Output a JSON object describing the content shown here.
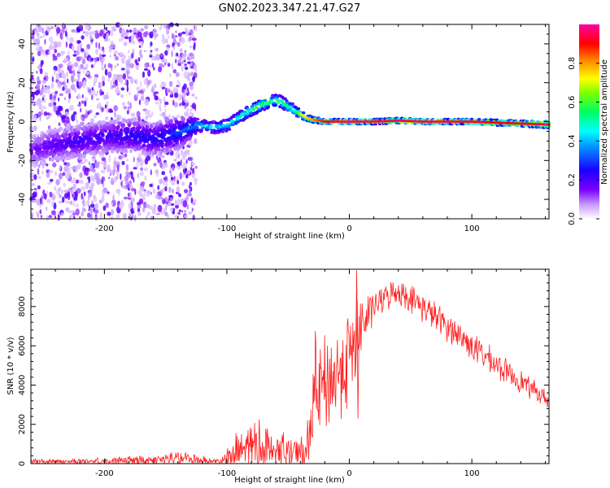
{
  "title": "GN02.2023.347.21.47.G27",
  "chart_data": [
    {
      "type": "heatmap",
      "xlabel": "Height of straight line (km)",
      "ylabel": "Frequency (Hz)",
      "xlim": [
        -260,
        163
      ],
      "ylim": [
        -50,
        50
      ],
      "x_ticks": [
        -200,
        -100,
        0,
        100
      ],
      "x_tick_labels": [
        "-200",
        "-100",
        "0",
        "100"
      ],
      "y_ticks": [
        -40,
        -20,
        0,
        20,
        40
      ],
      "y_tick_labels": [
        "-40",
        "-20",
        "0",
        "20",
        "40"
      ],
      "colorbar": {
        "label": "Normalized spectral amplitude",
        "range": [
          0,
          1
        ],
        "ticks": [
          0,
          0.2,
          0.4,
          0.6,
          0.8
        ],
        "tick_labels": [
          "0.0",
          "0.2",
          "0.4",
          "0.6",
          "0.8"
        ],
        "colormap": [
          "#ffffff",
          "#8a00ff",
          "#0000ff",
          "#00ffff",
          "#00ff00",
          "#ffff00",
          "#ff0000",
          "#ff00ff"
        ]
      },
      "ridge": {
        "x": [
          -260,
          -240,
          -220,
          -200,
          -180,
          -160,
          -140,
          -125,
          -120,
          -110,
          -100,
          -90,
          -80,
          -70,
          -60,
          -55,
          -50,
          -45,
          -40,
          -35,
          -30,
          -20,
          -10,
          0,
          20,
          40,
          60,
          80,
          100,
          120,
          140,
          163
        ],
        "frequency": [
          -15,
          -12,
          -10,
          -8,
          -7,
          -9,
          -6,
          -2,
          -2,
          -3,
          -2,
          2,
          6,
          9,
          11,
          10,
          8,
          6,
          4,
          2,
          1,
          0,
          0,
          0,
          0,
          0.5,
          0,
          0,
          0,
          -0.5,
          -1,
          -1.5
        ],
        "amplitude": [
          0.15,
          0.2,
          0.22,
          0.22,
          0.25,
          0.25,
          0.3,
          0.4,
          0.45,
          0.45,
          0.5,
          0.55,
          0.6,
          0.6,
          0.6,
          0.6,
          0.55,
          0.6,
          0.65,
          0.7,
          0.75,
          0.85,
          0.9,
          0.92,
          0.9,
          0.9,
          0.9,
          0.9,
          0.88,
          0.85,
          0.85,
          0.9
        ],
        "width_hz": [
          8,
          8,
          8,
          8,
          8,
          8,
          8,
          4,
          3,
          3,
          3,
          3,
          3,
          3,
          3,
          3,
          3,
          2.5,
          2,
          1.8,
          1.5,
          1.3,
          1.3,
          1.3,
          1.3,
          1.3,
          1.3,
          1.3,
          1.3,
          1.5,
          1.5,
          1.8
        ]
      },
      "noise_region_x": [
        -260,
        -125
      ]
    },
    {
      "type": "line",
      "xlabel": "Height of straight line (km)",
      "ylabel": "SNR (10 * v/v)",
      "xlim": [
        -260,
        163
      ],
      "ylim": [
        0,
        9900
      ],
      "x_ticks": [
        -200,
        -100,
        0,
        100
      ],
      "x_tick_labels": [
        "-200",
        "-100",
        "0",
        "100"
      ],
      "y_ticks": [
        0,
        2000,
        4000,
        6000,
        8000
      ],
      "y_tick_labels": [
        "0",
        "2000",
        "4000",
        "6000",
        "8000"
      ],
      "color": "#ff2020",
      "envelope": {
        "x": [
          -260,
          -200,
          -160,
          -140,
          -120,
          -105,
          -100,
          -90,
          -80,
          -70,
          -60,
          -50,
          -40,
          -35,
          -30,
          -28,
          -25,
          -20,
          -10,
          0,
          5,
          10,
          20,
          30,
          40,
          60,
          80,
          100,
          120,
          140,
          163
        ],
        "base": [
          120,
          130,
          200,
          250,
          180,
          120,
          300,
          600,
          900,
          800,
          700,
          500,
          450,
          500,
          3000,
          3500,
          3500,
          4000,
          4500,
          5500,
          6000,
          7000,
          8000,
          8500,
          8800,
          8000,
          7000,
          6000,
          5000,
          4200,
          3200
        ],
        "spread": [
          150,
          200,
          350,
          500,
          350,
          200,
          700,
          1300,
          1800,
          1500,
          1300,
          1100,
          1000,
          1200,
          3800,
          3500,
          3500,
          3000,
          3000,
          3000,
          2800,
          2000,
          900,
          800,
          800,
          900,
          900,
          900,
          800,
          700,
          500
        ]
      }
    }
  ]
}
